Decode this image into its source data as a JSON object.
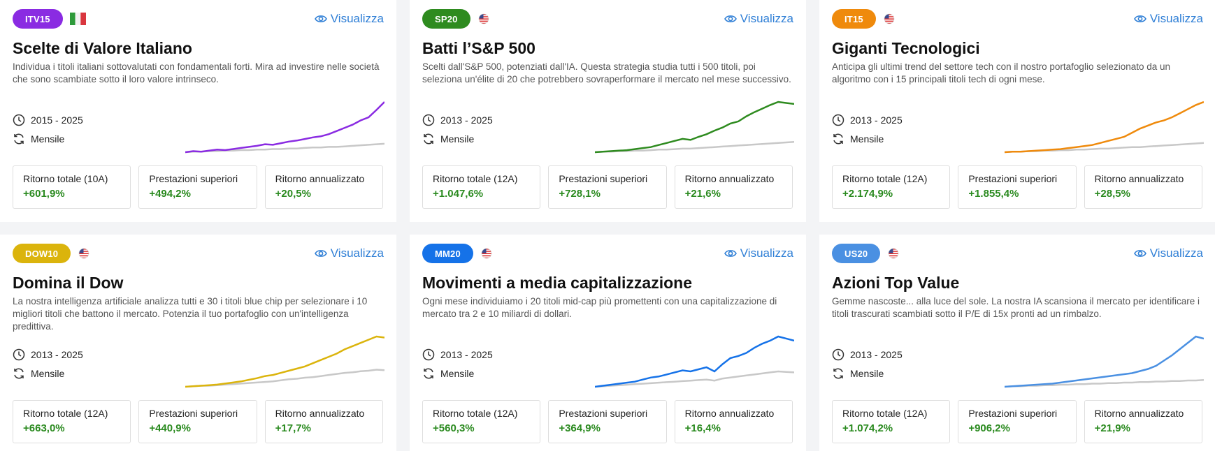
{
  "cards": [
    {
      "tag": "ITV15",
      "tag_color": "#8a2be2",
      "flag": "it",
      "line_color": "#8a2be2",
      "view_label": "Visualizza",
      "title": "Scelte di Valore Italiano",
      "description": "Individua i titoli italiani sottovalutati con fondamentali forti. Mira ad investire nelle società che sono scambiate sotto il loro valore intrinseco.",
      "period": "2015 - 2025",
      "frequency": "Mensile",
      "stats": [
        {
          "label": "Ritorno totale (10A)",
          "value": "+601,9%"
        },
        {
          "label": "Prestazioni superiori",
          "value": "+494,2%"
        },
        {
          "label": "Ritorno annualizzato",
          "value": "+20,5%"
        }
      ],
      "chart_data": {
        "type": "line",
        "series": [
          {
            "values": [
              0,
              2,
              1,
              3,
              5,
              4,
              6,
              8,
              10,
              12,
              15,
              14,
              17,
              20,
              22,
              25,
              28,
              30,
              34,
              40,
              46,
              52,
              60,
              66,
              80,
              95
            ]
          },
          {
            "values": [
              0,
              1,
              1,
              2,
              2,
              3,
              3,
              4,
              4,
              5,
              5,
              6,
              6,
              7,
              7,
              8,
              9,
              9,
              10,
              10,
              11,
              12,
              13,
              14,
              15,
              16
            ]
          }
        ]
      }
    },
    {
      "tag": "SP20",
      "tag_color": "#2e8b1f",
      "flag": "us",
      "line_color": "#2e8b1f",
      "view_label": "Visualizza",
      "title": "Batti l’S&P 500",
      "description": "Scelti dall'S&P 500, potenziati dall'IA. Questa strategia studia tutti i 500 titoli, poi seleziona un'élite di 20 che potrebbero sovraperformare il mercato nel mese successivo.",
      "period": "2013 - 2025",
      "frequency": "Mensile",
      "stats": [
        {
          "label": "Ritorno totale (12A)",
          "value": "+1.047,6%"
        },
        {
          "label": "Prestazioni superiori",
          "value": "+728,1%"
        },
        {
          "label": "Ritorno annualizzato",
          "value": "+21,6%"
        }
      ],
      "chart_data": {
        "type": "line",
        "series": [
          {
            "values": [
              0,
              1,
              2,
              3,
              4,
              6,
              8,
              10,
              14,
              18,
              22,
              26,
              24,
              30,
              35,
              42,
              48,
              56,
              60,
              70,
              78,
              85,
              92,
              98,
              96,
              94
            ]
          },
          {
            "values": [
              0,
              1,
              1,
              2,
              2,
              3,
              3,
              4,
              5,
              5,
              6,
              7,
              7,
              8,
              9,
              10,
              11,
              12,
              13,
              14,
              15,
              16,
              17,
              18,
              19,
              20
            ]
          }
        ]
      }
    },
    {
      "tag": "IT15",
      "tag_color": "#ef8a0c",
      "flag": "us",
      "line_color": "#ef8a0c",
      "view_label": "Visualizza",
      "title": "Giganti Tecnologici",
      "description": "Anticipa gli ultimi trend del settore tech con il nostro portafoglio selezionato da un algoritmo con i 15 principali titoli tech di ogni mese.",
      "period": "2013 - 2025",
      "frequency": "Mensile",
      "stats": [
        {
          "label": "Ritorno totale (12A)",
          "value": "+2.174,9%"
        },
        {
          "label": "Prestazioni superiori",
          "value": "+1.855,4%"
        },
        {
          "label": "Ritorno annualizzato",
          "value": "+28,5%"
        }
      ],
      "chart_data": {
        "type": "line",
        "series": [
          {
            "values": [
              0,
              1,
              1,
              2,
              3,
              4,
              5,
              6,
              8,
              10,
              12,
              14,
              18,
              22,
              26,
              30,
              38,
              46,
              52,
              58,
              62,
              68,
              76,
              84,
              92,
              98
            ]
          },
          {
            "values": [
              0,
              1,
              1,
              2,
              2,
              3,
              3,
              4,
              4,
              5,
              5,
              6,
              7,
              7,
              8,
              9,
              10,
              10,
              11,
              12,
              13,
              14,
              15,
              16,
              17,
              18
            ]
          }
        ]
      }
    },
    {
      "tag": "DOW10",
      "tag_color": "#dbb40c",
      "flag": "us",
      "line_color": "#dbb40c",
      "view_label": "Visualizza",
      "title": "Domina il Dow",
      "description": "La nostra intelligenza artificiale analizza tutti e 30 i titoli blue chip per selezionare i 10 migliori titoli che battono il mercato. Potenzia il tuo portafoglio con un'intelligenza predittiva.",
      "period": "2013 - 2025",
      "frequency": "Mensile",
      "stats": [
        {
          "label": "Ritorno totale (12A)",
          "value": "+663,0%"
        },
        {
          "label": "Prestazioni superiori",
          "value": "+440,9%"
        },
        {
          "label": "Ritorno annualizzato",
          "value": "+17,7%"
        }
      ],
      "chart_data": {
        "type": "line",
        "series": [
          {
            "values": [
              0,
              1,
              2,
              3,
              4,
              6,
              8,
              10,
              13,
              16,
              20,
              22,
              26,
              30,
              34,
              38,
              44,
              50,
              56,
              62,
              70,
              76,
              82,
              88,
              94,
              92
            ]
          },
          {
            "values": [
              0,
              1,
              2,
              2,
              3,
              4,
              5,
              6,
              7,
              8,
              9,
              10,
              12,
              14,
              15,
              17,
              18,
              20,
              22,
              24,
              26,
              27,
              29,
              30,
              32,
              31
            ]
          }
        ]
      }
    },
    {
      "tag": "MM20",
      "tag_color": "#1572e8",
      "flag": "us",
      "line_color": "#1572e8",
      "view_label": "Visualizza",
      "title": "Movimenti a media capitalizzazione",
      "description": "Ogni mese individuiamo i 20 titoli mid-cap più promettenti con una capitalizzazione di mercato tra 2 e 10 miliardi di dollari.",
      "period": "2013 - 2025",
      "frequency": "Mensile",
      "stats": [
        {
          "label": "Ritorno totale (12A)",
          "value": "+560,3%"
        },
        {
          "label": "Prestazioni superiori",
          "value": "+364,9%"
        },
        {
          "label": "Ritorno annualizzato",
          "value": "+16,4%"
        }
      ],
      "chart_data": {
        "type": "line",
        "series": [
          {
            "values": [
              0,
              2,
              4,
              6,
              8,
              10,
              14,
              18,
              20,
              24,
              28,
              32,
              30,
              34,
              38,
              30,
              44,
              56,
              60,
              66,
              76,
              84,
              90,
              98,
              94,
              90
            ]
          },
          {
            "values": [
              0,
              1,
              2,
              3,
              4,
              5,
              6,
              7,
              8,
              9,
              10,
              11,
              12,
              13,
              14,
              12,
              16,
              18,
              20,
              22,
              24,
              26,
              28,
              30,
              29,
              28
            ]
          }
        ]
      }
    },
    {
      "tag": "US20",
      "tag_color": "#4a90e2",
      "flag": "us",
      "line_color": "#4a90e2",
      "view_label": "Visualizza",
      "title": "Azioni Top Value",
      "description": "Gemme nascoste... alla luce del sole. La nostra IA scansiona il mercato per identificare i titoli trascurati scambiati sotto il P/E di 15x pronti ad un rimbalzo.",
      "period": "2013 - 2025",
      "frequency": "Mensile",
      "stats": [
        {
          "label": "Ritorno totale (12A)",
          "value": "+1.074,2%"
        },
        {
          "label": "Prestazioni superiori",
          "value": "+906,2%"
        },
        {
          "label": "Ritorno annualizzato",
          "value": "+21,9%"
        }
      ],
      "chart_data": {
        "type": "line",
        "series": [
          {
            "values": [
              0,
              1,
              2,
              3,
              4,
              5,
              6,
              8,
              10,
              12,
              14,
              16,
              18,
              20,
              22,
              24,
              26,
              30,
              34,
              40,
              50,
              60,
              72,
              84,
              96,
              92
            ]
          },
          {
            "values": [
              0,
              1,
              1,
              2,
              2,
              3,
              3,
              4,
              4,
              5,
              5,
              6,
              6,
              7,
              7,
              8,
              8,
              9,
              9,
              10,
              10,
              11,
              11,
              12,
              12,
              13
            ]
          }
        ]
      }
    }
  ]
}
